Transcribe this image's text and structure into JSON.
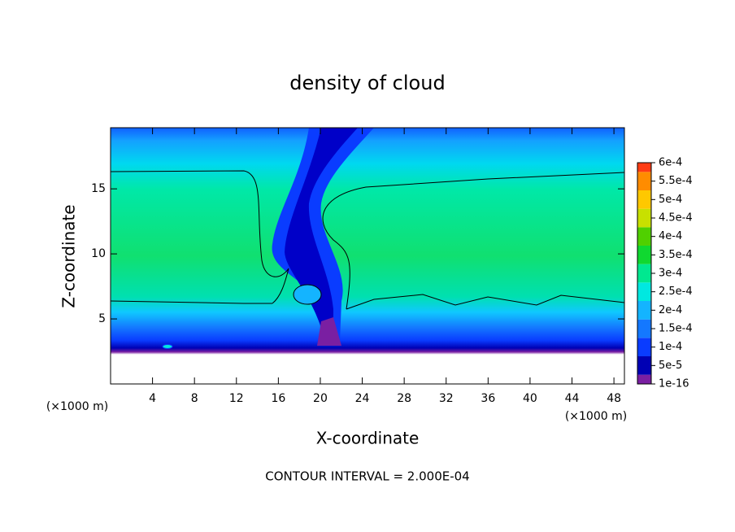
{
  "chart_data": {
    "type": "contour",
    "title": "density of cloud",
    "x_label": "X-coordinate",
    "y_label": "Z-coordinate",
    "x_unit": "(×1000 m)",
    "y_unit": "(×1000 m)",
    "footnote": "CONTOUR INTERVAL = 2.000E-04",
    "xlim": [
      0,
      49
    ],
    "ylim": [
      0,
      19.7
    ],
    "xticks": [
      4,
      8,
      12,
      16,
      20,
      24,
      28,
      32,
      36,
      40,
      44,
      48
    ],
    "yticks": [
      5,
      10,
      15
    ],
    "colorbar": {
      "levels": [
        {
          "value": 1e-16,
          "label": "1e-16"
        },
        {
          "value": 5e-05,
          "label": "5e-5"
        },
        {
          "value": 0.0001,
          "label": "1e-4"
        },
        {
          "value": 0.00015,
          "label": "1.5e-4"
        },
        {
          "value": 0.0002,
          "label": "2e-4"
        },
        {
          "value": 0.00025,
          "label": "2.5e-4"
        },
        {
          "value": 0.0003,
          "label": "3e-4"
        },
        {
          "value": 0.00035,
          "label": "3.5e-4"
        },
        {
          "value": 0.0004,
          "label": "4e-4"
        },
        {
          "value": 0.00045,
          "label": "4.5e-4"
        },
        {
          "value": 0.0005,
          "label": "5e-4"
        },
        {
          "value": 0.00055,
          "label": "5.5e-4"
        },
        {
          "value": 0.0006,
          "label": "6e-4"
        }
      ],
      "colors": [
        "#7a1fa2",
        "#0000b4",
        "#0a3cff",
        "#1478ff",
        "#14b4ff",
        "#00e8e0",
        "#00e890",
        "#10d830",
        "#50d000",
        "#c8e000",
        "#ffc800",
        "#ff8c00",
        "#ff3c14",
        "#ff8c8c"
      ]
    }
  }
}
